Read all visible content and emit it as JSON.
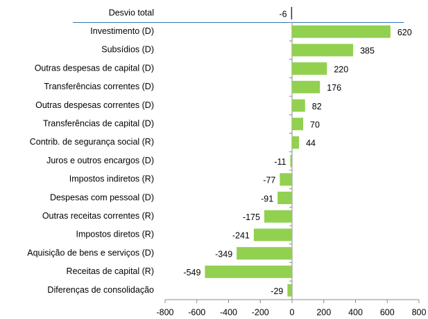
{
  "chart_data": {
    "type": "bar",
    "orientation": "horizontal",
    "categories": [
      "Desvio total",
      "Investimento (D)",
      "Subsídios (D)",
      "Outras despesas de capital (D)",
      "Transferências correntes (D)",
      "Outras despesas correntes (D)",
      "Transferências de capital (D)",
      "Contrib. de segurança social (R)",
      "Juros e outros encargos (D)",
      "Impostos indiretos (R)",
      "Despesas com pessoal (D)",
      "Outras receitas correntes (R)",
      "Impostos diretos (R)",
      "Aquisição de bens e serviços (D)",
      "Receitas de capital (R)",
      "Diferenças de consolidação"
    ],
    "values": [
      -6,
      620,
      385,
      220,
      176,
      82,
      70,
      44,
      -11,
      -77,
      -91,
      -175,
      -241,
      -349,
      -549,
      -29
    ],
    "colors": [
      "#1f3864",
      "#92d050",
      "#92d050",
      "#92d050",
      "#92d050",
      "#92d050",
      "#92d050",
      "#92d050",
      "#92d050",
      "#92d050",
      "#92d050",
      "#92d050",
      "#92d050",
      "#92d050",
      "#92d050",
      "#92d050"
    ],
    "xlim": [
      -800,
      800
    ],
    "xticks": [
      -800,
      -600,
      -400,
      -200,
      0,
      200,
      400,
      600,
      800
    ],
    "grid": false
  }
}
